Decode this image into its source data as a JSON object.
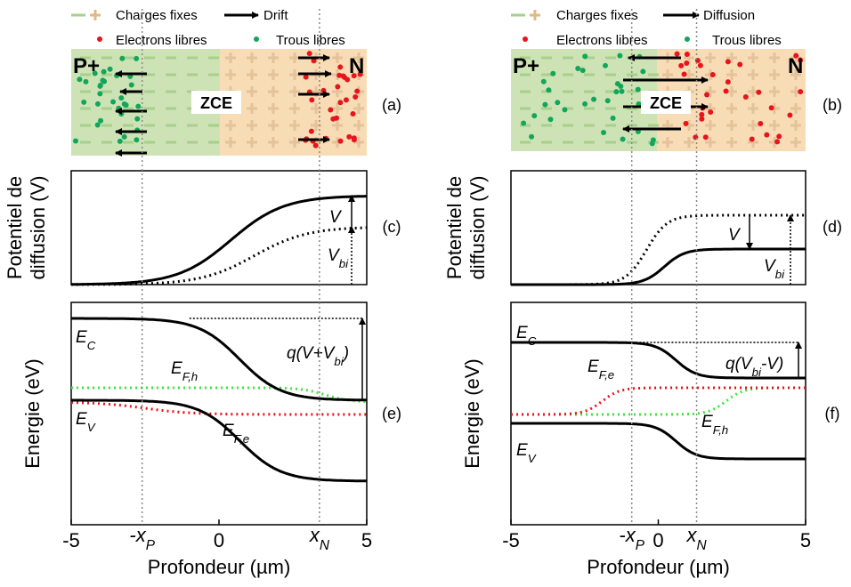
{
  "panels": [
    {
      "legend": {
        "fixed": "Charges fixes",
        "flow": "Drift",
        "electrons": "Electrons libres",
        "holes": "Trous libres"
      },
      "regions": {
        "p": "P+",
        "zce": "ZCE",
        "n": "N"
      },
      "panel_labels": [
        "(a)",
        "(c)",
        "(e)"
      ],
      "ylabel_potential": [
        "Potentiel de",
        "diffusion (V)"
      ],
      "ylabel_energy": "Energie (eV)",
      "potential_labels": {
        "v": "V",
        "vbi": [
          "V",
          "bi"
        ]
      },
      "energy_labels": {
        "ec": [
          "E",
          "C"
        ],
        "ev": [
          "E",
          "V"
        ],
        "efh": [
          "E",
          "F,h"
        ],
        "efe": [
          "E",
          "F,e"
        ],
        "barrier": [
          "q(V+V",
          "bi",
          ")"
        ]
      },
      "xlabel": "Profondeur (µm)",
      "xlim": [
        -5,
        5
      ],
      "xticks": [
        -5,
        0,
        5,
        {
          "value": -2.6,
          "label": [
            "-x",
            "P"
          ]
        },
        {
          "value": 3.4,
          "label": [
            "x",
            "N"
          ]
        }
      ]
    },
    {
      "legend": {
        "fixed": "Charges fixes",
        "flow": "Diffusion",
        "electrons": "Electrons libres",
        "holes": "Trous libres"
      },
      "regions": {
        "p": "P+",
        "zce": "ZCE",
        "n": "N"
      },
      "panel_labels": [
        "(b)",
        "(d)",
        "(f)"
      ],
      "ylabel_potential": [
        "Potentiel de",
        "diffusion (V)"
      ],
      "ylabel_energy": "Energie (eV)",
      "potential_labels": {
        "v": "V",
        "vbi": [
          "V",
          "bi"
        ]
      },
      "energy_labels": {
        "ec": [
          "E",
          "C"
        ],
        "ev": [
          "E",
          "V"
        ],
        "efh": [
          "E",
          "F,h"
        ],
        "efe": [
          "E",
          "F,e"
        ],
        "barrier": [
          "q(V",
          "bi",
          "-V)"
        ]
      },
      "xlabel": "Profondeur (µm)",
      "xlim": [
        -5,
        5
      ],
      "xticks": [
        -5,
        0,
        5,
        {
          "value": -0.9,
          "label": [
            "-x",
            "P"
          ]
        },
        {
          "value": 1.3,
          "label": [
            "x",
            "N"
          ]
        }
      ]
    }
  ]
}
